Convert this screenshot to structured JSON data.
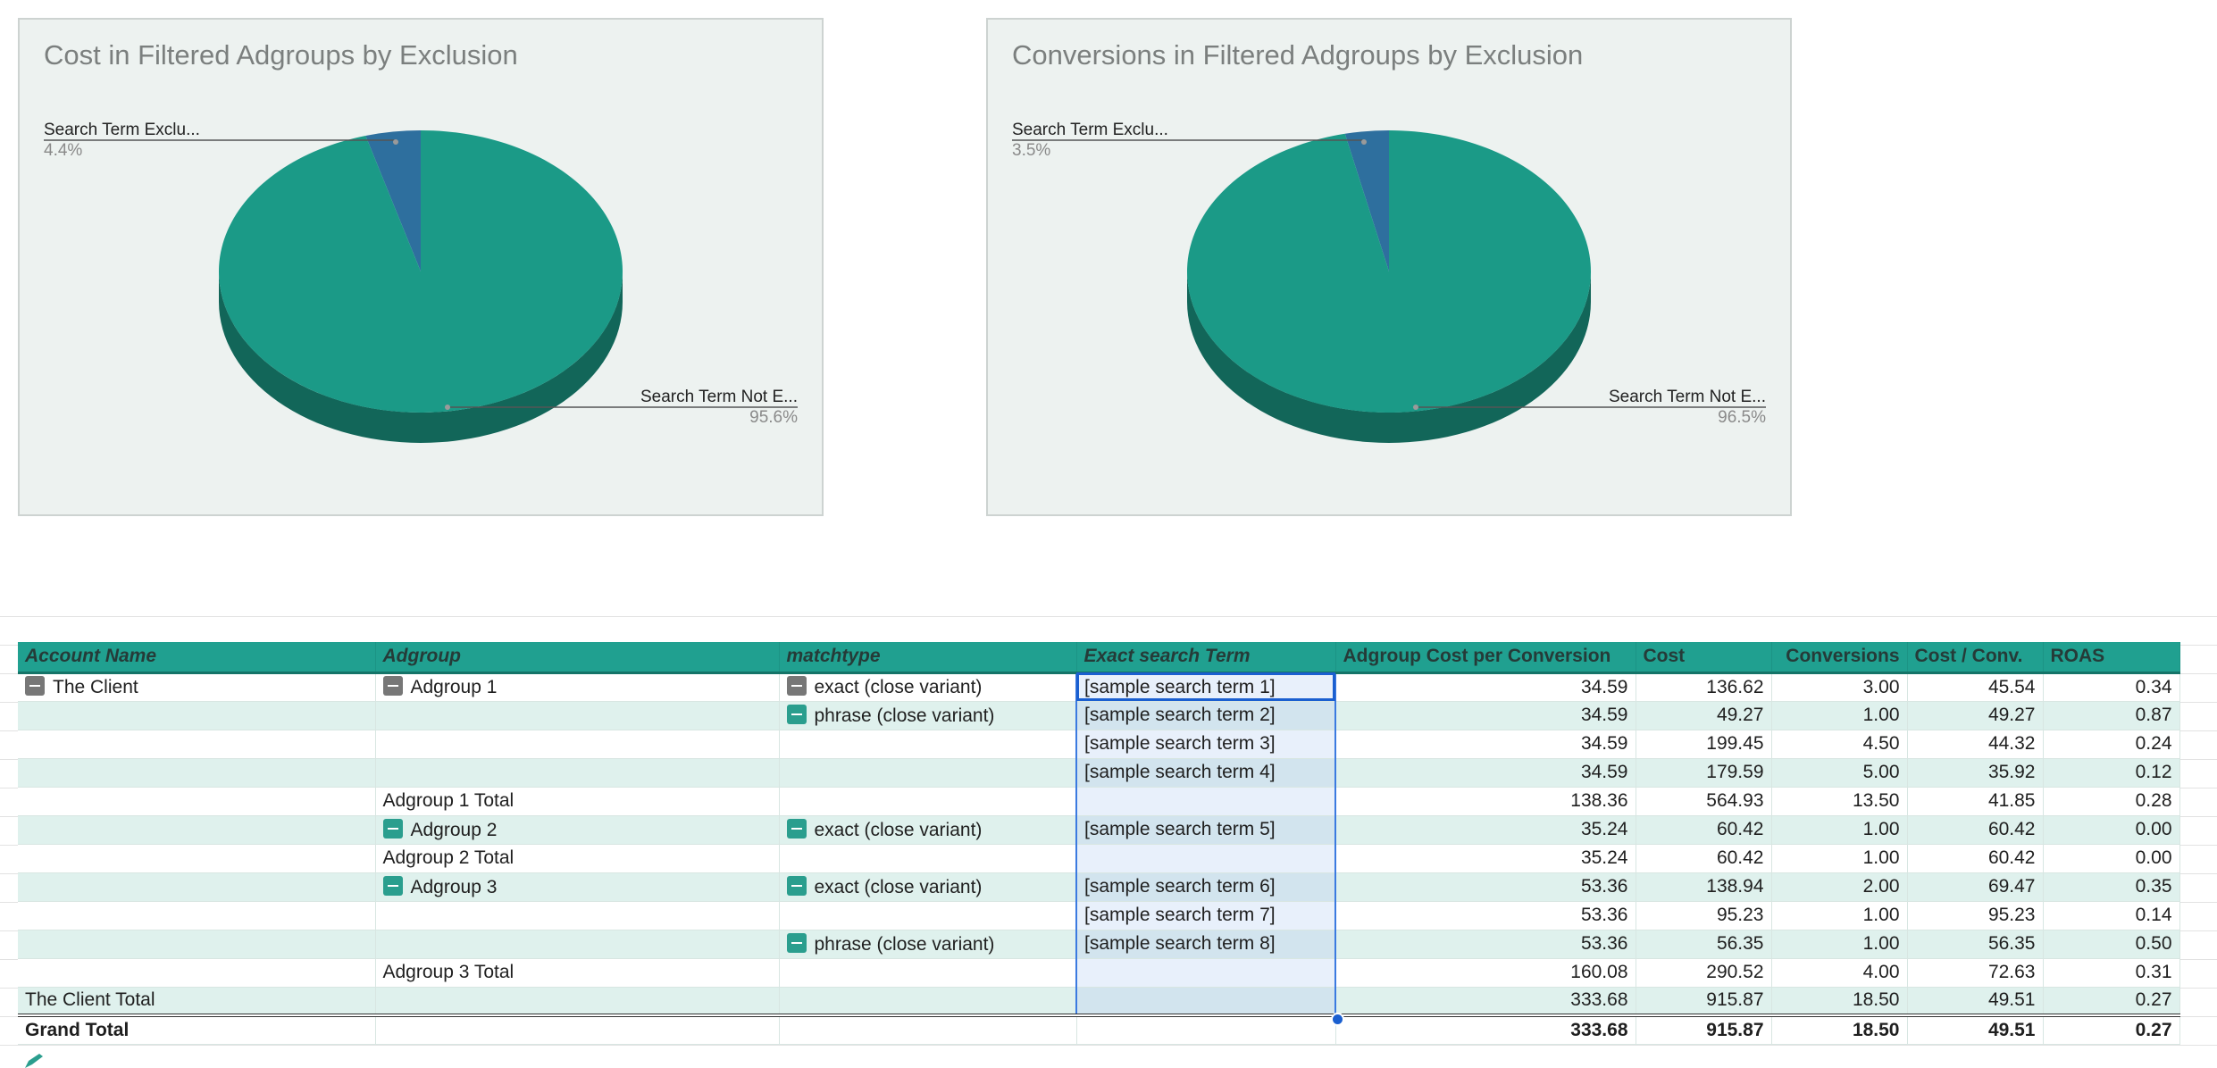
{
  "charts": [
    {
      "title": "Cost in Filtered Adgroups by Exclusion",
      "slices": [
        {
          "label": "Search Term Exclu...",
          "percent": "4.4%",
          "value": 4.4,
          "color": "#2e6f9e"
        },
        {
          "label": "Search Term Not E...",
          "percent": "95.6%",
          "value": 95.6,
          "color": "#1b9a87"
        }
      ]
    },
    {
      "title": "Conversions in Filtered Adgroups by Exclusion",
      "slices": [
        {
          "label": "Search Term Exclu...",
          "percent": "3.5%",
          "value": 3.5,
          "color": "#2e6f9e"
        },
        {
          "label": "Search Term Not E...",
          "percent": "96.5%",
          "value": 96.5,
          "color": "#1b9a87"
        }
      ]
    }
  ],
  "chart_data": [
    {
      "type": "pie",
      "title": "Cost in Filtered Adgroups by Exclusion",
      "categories": [
        "Search Term Exclu...",
        "Search Term Not E..."
      ],
      "values": [
        4.4,
        95.6
      ]
    },
    {
      "type": "pie",
      "title": "Conversions in Filtered Adgroups by Exclusion",
      "categories": [
        "Search Term Exclu...",
        "Search Term Not E..."
      ],
      "values": [
        3.5,
        96.5
      ]
    }
  ],
  "table": {
    "headers": [
      "Account Name",
      "Adgroup",
      "matchtype",
      "Exact search Term",
      "Adgroup Cost per Conversion",
      "Cost",
      "Conversions",
      "Cost / Conv.",
      "ROAS"
    ],
    "rows": [
      {
        "account": "The Client",
        "account_toggle": true,
        "adgroup": "Adgroup 1",
        "adgroup_toggle": "grey",
        "matchtype": "exact (close variant)",
        "match_toggle": "grey",
        "term": "[sample search term 1]",
        "cpc": "34.59",
        "cost": "136.62",
        "conv": "3.00",
        "cpa": "45.54",
        "roas": "0.34"
      },
      {
        "account": "",
        "adgroup": "",
        "matchtype": "phrase (close variant)",
        "match_toggle": "teal",
        "term": "[sample search term 2]",
        "cpc": "34.59",
        "cost": "49.27",
        "conv": "1.00",
        "cpa": "49.27",
        "roas": "0.87"
      },
      {
        "account": "",
        "adgroup": "",
        "matchtype": "",
        "term": "[sample search term 3]",
        "cpc": "34.59",
        "cost": "199.45",
        "conv": "4.50",
        "cpa": "44.32",
        "roas": "0.24"
      },
      {
        "account": "",
        "adgroup": "",
        "matchtype": "",
        "term": "[sample search term 4]",
        "cpc": "34.59",
        "cost": "179.59",
        "conv": "5.00",
        "cpa": "35.92",
        "roas": "0.12"
      },
      {
        "account": "",
        "adgroup": "Adgroup 1 Total",
        "matchtype": "",
        "term": "",
        "cpc": "138.36",
        "cost": "564.93",
        "conv": "13.50",
        "cpa": "41.85",
        "roas": "0.28"
      },
      {
        "account": "",
        "adgroup": "Adgroup 2",
        "adgroup_toggle": "teal",
        "matchtype": "exact (close variant)",
        "match_toggle": "teal",
        "term": "[sample search term 5]",
        "cpc": "35.24",
        "cost": "60.42",
        "conv": "1.00",
        "cpa": "60.42",
        "roas": "0.00"
      },
      {
        "account": "",
        "adgroup": "Adgroup 2 Total",
        "matchtype": "",
        "term": "",
        "cpc": "35.24",
        "cost": "60.42",
        "conv": "1.00",
        "cpa": "60.42",
        "roas": "0.00"
      },
      {
        "account": "",
        "adgroup": "Adgroup 3",
        "adgroup_toggle": "teal",
        "matchtype": "exact (close variant)",
        "match_toggle": "teal",
        "term": "[sample search term 6]",
        "cpc": "53.36",
        "cost": "138.94",
        "conv": "2.00",
        "cpa": "69.47",
        "roas": "0.35"
      },
      {
        "account": "",
        "adgroup": "",
        "matchtype": "",
        "term": "[sample search term 7]",
        "cpc": "53.36",
        "cost": "95.23",
        "conv": "1.00",
        "cpa": "95.23",
        "roas": "0.14"
      },
      {
        "account": "",
        "adgroup": "",
        "matchtype": "phrase (close variant)",
        "match_toggle": "teal",
        "term": "[sample search term 8]",
        "cpc": "53.36",
        "cost": "56.35",
        "conv": "1.00",
        "cpa": "56.35",
        "roas": "0.50"
      },
      {
        "account": "",
        "adgroup": "Adgroup 3 Total",
        "matchtype": "",
        "term": "",
        "cpc": "160.08",
        "cost": "290.52",
        "conv": "4.00",
        "cpa": "72.63",
        "roas": "0.31"
      },
      {
        "account": "The Client Total",
        "adgroup": "",
        "matchtype": "",
        "term": "",
        "cpc": "333.68",
        "cost": "915.87",
        "conv": "18.50",
        "cpa": "49.51",
        "roas": "0.27"
      }
    ],
    "grand_total": {
      "label": "Grand Total",
      "cpc": "333.68",
      "cost": "915.87",
      "conv": "18.50",
      "cpa": "49.51",
      "roas": "0.27"
    }
  }
}
